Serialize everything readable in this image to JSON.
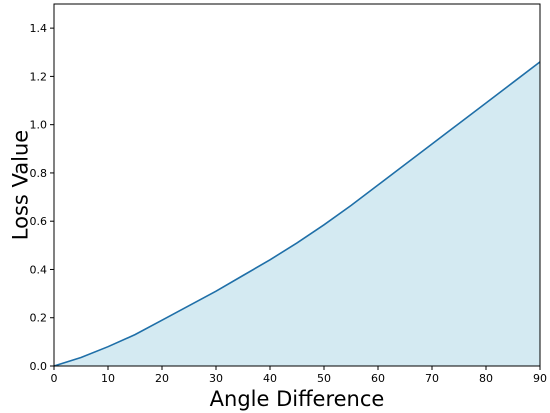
{
  "chart_data": {
    "type": "area",
    "xlabel": "Angle Difference",
    "ylabel": "Loss Value",
    "xlim": [
      0,
      90
    ],
    "ylim": [
      0,
      1.5
    ],
    "x_ticks": [
      0,
      10,
      20,
      30,
      40,
      50,
      60,
      70,
      80,
      90
    ],
    "y_ticks": [
      0.0,
      0.2,
      0.4,
      0.6,
      0.8,
      1.0,
      1.2,
      1.4
    ],
    "x_tick_labels": [
      "0",
      "10",
      "20",
      "30",
      "40",
      "50",
      "60",
      "70",
      "80",
      "90"
    ],
    "y_tick_labels": [
      "0.0",
      "0.2",
      "0.4",
      "0.6",
      "0.8",
      "1.0",
      "1.2",
      "1.4"
    ],
    "grid": false,
    "line_color": "#1f6fa8",
    "fill_color": "#d4eaf2",
    "series": [
      {
        "x": [
          0,
          5,
          10,
          15,
          20,
          25,
          30,
          35,
          40,
          45,
          50,
          55,
          60,
          65,
          70,
          75,
          80,
          85,
          90
        ],
        "y": [
          0.0,
          0.035,
          0.08,
          0.13,
          0.19,
          0.25,
          0.31,
          0.375,
          0.44,
          0.51,
          0.585,
          0.665,
          0.75,
          0.835,
          0.92,
          1.005,
          1.09,
          1.175,
          1.26
        ]
      }
    ]
  }
}
